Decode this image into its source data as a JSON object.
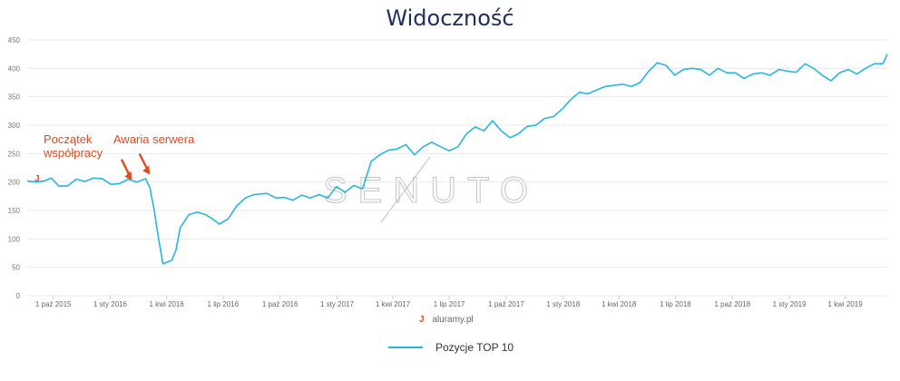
{
  "chart_data": {
    "type": "line",
    "title": "Widoczność",
    "xlabel": "",
    "ylabel": "",
    "ylim": [
      0,
      450
    ],
    "xlim": [
      "2015-08-20",
      "2019-06-08"
    ],
    "y_ticks": [
      0,
      50,
      100,
      150,
      200,
      250,
      300,
      350,
      400,
      450
    ],
    "x_ticks": [
      {
        "date": "2015-10-01",
        "label": "1 paź 2015"
      },
      {
        "date": "2016-01-01",
        "label": "1 sty 2016"
      },
      {
        "date": "2016-04-01",
        "label": "1 kwi 2016"
      },
      {
        "date": "2016-07-01",
        "label": "1 lip 2016"
      },
      {
        "date": "2016-10-01",
        "label": "1 paź 2016"
      },
      {
        "date": "2017-01-01",
        "label": "1 sty 2017"
      },
      {
        "date": "2017-04-01",
        "label": "1 kwi 2017"
      },
      {
        "date": "2017-07-01",
        "label": "1 lip 2017"
      },
      {
        "date": "2017-10-01",
        "label": "1 paź 2017"
      },
      {
        "date": "2018-01-01",
        "label": "1 sty 2018"
      },
      {
        "date": "2018-04-01",
        "label": "1 kwi 2018"
      },
      {
        "date": "2018-07-01",
        "label": "1 lip 2018"
      },
      {
        "date": "2018-10-01",
        "label": "1 paź 2018"
      },
      {
        "date": "2019-01-01",
        "label": "1 sty 2019"
      },
      {
        "date": "2019-04-01",
        "label": "1 kwi 2019"
      }
    ],
    "grid": true,
    "legend_position": "bottom-center",
    "series": [
      {
        "name": "Pozycje TOP 10",
        "color": "#27b5e2",
        "points": [
          [
            "2015-08-20",
            202
          ],
          [
            "2015-09-03",
            200
          ],
          [
            "2015-09-17",
            202
          ],
          [
            "2015-09-28",
            207
          ],
          [
            "2015-10-10",
            193
          ],
          [
            "2015-10-24",
            193
          ],
          [
            "2015-11-07",
            205
          ],
          [
            "2015-11-21",
            201
          ],
          [
            "2015-12-05",
            207
          ],
          [
            "2015-12-19",
            206
          ],
          [
            "2016-01-02",
            196
          ],
          [
            "2016-01-16",
            197
          ],
          [
            "2016-01-30",
            205
          ],
          [
            "2016-02-13",
            200
          ],
          [
            "2016-02-27",
            206
          ],
          [
            "2016-03-05",
            190
          ],
          [
            "2016-03-12",
            150
          ],
          [
            "2016-03-19",
            100
          ],
          [
            "2016-03-26",
            56
          ],
          [
            "2016-04-09",
            62
          ],
          [
            "2016-04-16",
            80
          ],
          [
            "2016-04-23",
            120
          ],
          [
            "2016-05-07",
            143
          ],
          [
            "2016-05-21",
            147
          ],
          [
            "2016-06-04",
            142
          ],
          [
            "2016-06-18",
            132
          ],
          [
            "2016-06-25",
            126
          ],
          [
            "2016-07-09",
            135
          ],
          [
            "2016-07-23",
            158
          ],
          [
            "2016-08-06",
            172
          ],
          [
            "2016-08-20",
            178
          ],
          [
            "2016-09-10",
            180
          ],
          [
            "2016-09-24",
            172
          ],
          [
            "2016-10-08",
            173
          ],
          [
            "2016-10-22",
            168
          ],
          [
            "2016-11-05",
            177
          ],
          [
            "2016-11-19",
            172
          ],
          [
            "2016-12-03",
            178
          ],
          [
            "2016-12-17",
            172
          ],
          [
            "2016-12-31",
            192
          ],
          [
            "2017-01-14",
            182
          ],
          [
            "2017-01-28",
            194
          ],
          [
            "2017-02-11",
            188
          ],
          [
            "2017-02-25",
            236
          ],
          [
            "2017-03-11",
            248
          ],
          [
            "2017-03-25",
            256
          ],
          [
            "2017-04-08",
            258
          ],
          [
            "2017-04-22",
            266
          ],
          [
            "2017-05-06",
            248
          ],
          [
            "2017-05-20",
            262
          ],
          [
            "2017-06-03",
            270
          ],
          [
            "2017-06-17",
            262
          ],
          [
            "2017-07-01",
            255
          ],
          [
            "2017-07-15",
            262
          ],
          [
            "2017-07-29",
            285
          ],
          [
            "2017-08-12",
            297
          ],
          [
            "2017-08-26",
            290
          ],
          [
            "2017-09-09",
            308
          ],
          [
            "2017-09-23",
            290
          ],
          [
            "2017-10-07",
            278
          ],
          [
            "2017-10-21",
            285
          ],
          [
            "2017-11-04",
            298
          ],
          [
            "2017-11-18",
            300
          ],
          [
            "2017-12-02",
            312
          ],
          [
            "2017-12-16",
            315
          ],
          [
            "2017-12-30",
            328
          ],
          [
            "2018-01-13",
            345
          ],
          [
            "2018-01-27",
            358
          ],
          [
            "2018-02-10",
            355
          ],
          [
            "2018-02-24",
            362
          ],
          [
            "2018-03-10",
            368
          ],
          [
            "2018-03-24",
            370
          ],
          [
            "2018-04-07",
            372
          ],
          [
            "2018-04-21",
            368
          ],
          [
            "2018-05-05",
            375
          ],
          [
            "2018-05-19",
            395
          ],
          [
            "2018-06-02",
            410
          ],
          [
            "2018-06-16",
            405
          ],
          [
            "2018-06-30",
            388
          ],
          [
            "2018-07-14",
            398
          ],
          [
            "2018-07-28",
            400
          ],
          [
            "2018-08-11",
            398
          ],
          [
            "2018-08-25",
            388
          ],
          [
            "2018-09-08",
            400
          ],
          [
            "2018-09-22",
            392
          ],
          [
            "2018-10-06",
            392
          ],
          [
            "2018-10-20",
            382
          ],
          [
            "2018-11-03",
            390
          ],
          [
            "2018-11-17",
            392
          ],
          [
            "2018-12-01",
            388
          ],
          [
            "2018-12-15",
            398
          ],
          [
            "2018-12-29",
            395
          ],
          [
            "2019-01-12",
            393
          ],
          [
            "2019-01-26",
            408
          ],
          [
            "2019-02-09",
            400
          ],
          [
            "2019-02-23",
            388
          ],
          [
            "2019-03-09",
            378
          ],
          [
            "2019-03-23",
            392
          ],
          [
            "2019-04-06",
            398
          ],
          [
            "2019-04-20",
            390
          ],
          [
            "2019-05-04",
            400
          ],
          [
            "2019-05-18",
            408
          ],
          [
            "2019-06-01",
            408
          ],
          [
            "2019-06-08",
            425
          ]
        ]
      }
    ],
    "annotations": [
      {
        "lines": [
          "Początek",
          "współpracy"
        ],
        "date": "2016-02-05",
        "value": 200
      },
      {
        "lines": [
          "Awaria serwera"
        ],
        "date": "2016-03-05",
        "value": 210
      }
    ]
  },
  "watermark": "SENUTO",
  "brand_mark": "J",
  "brand_text": "aluramy.pl",
  "marker_glyph": "J"
}
